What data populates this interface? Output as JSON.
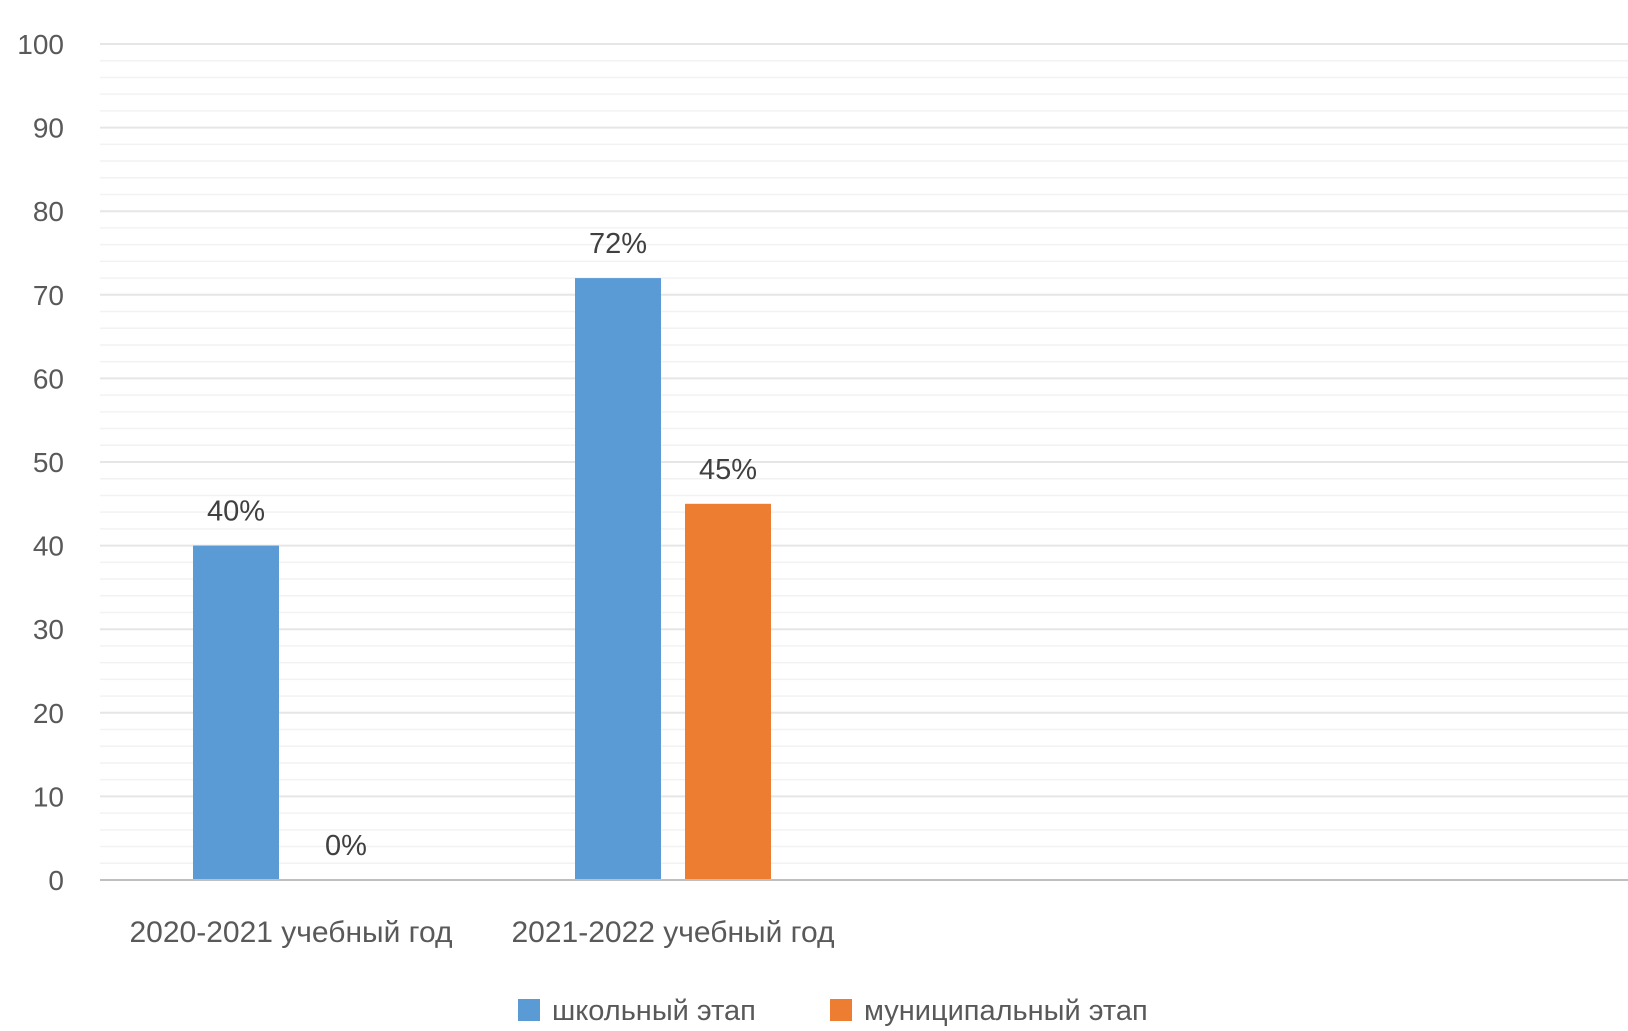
{
  "chart_data": {
    "type": "bar",
    "title": "",
    "xlabel": "",
    "ylabel": "",
    "ylim": [
      0,
      100
    ],
    "yticks": [
      0,
      10,
      20,
      30,
      40,
      50,
      60,
      70,
      80,
      90,
      100
    ],
    "minor_grid_step": 2,
    "grid": true,
    "legend": "bottom",
    "categories": [
      "2020-2021 учебный год",
      "2021-2022 учебный год",
      "",
      ""
    ],
    "series": [
      {
        "name": "школьный этап",
        "color": "#5b9bd5",
        "values": [
          40,
          72,
          null,
          null
        ],
        "labels": [
          "40%",
          "72%",
          "",
          ""
        ]
      },
      {
        "name": "муниципальный этап",
        "color": "#ed7d31",
        "values": [
          0,
          45,
          null,
          null
        ],
        "labels": [
          "0%",
          "45%",
          "",
          ""
        ]
      }
    ]
  }
}
